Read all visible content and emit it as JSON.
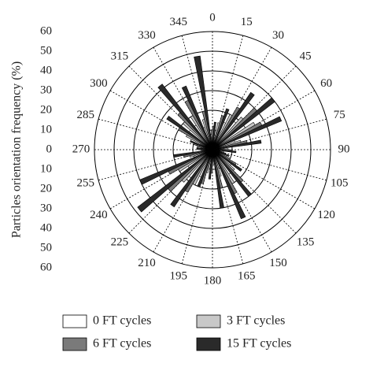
{
  "chart_data": {
    "type": "polar-bar",
    "y_label": "Particles orientation frequency (%)",
    "categories": [
      "0",
      "15",
      "30",
      "45",
      "60",
      "75",
      "90",
      "105",
      "120",
      "135",
      "150",
      "165",
      "180",
      "195",
      "210",
      "225",
      "240",
      "255",
      "270",
      "285",
      "300",
      "315",
      "330",
      "345"
    ],
    "rlim": [
      0,
      60
    ],
    "rticks": [
      0,
      10,
      20,
      30,
      40,
      50,
      60
    ],
    "grid": true,
    "series": [
      {
        "name": "0 FT cycles",
        "color": "#ffffff",
        "values": [
          8,
          10,
          15,
          18,
          20,
          12,
          6,
          4,
          8,
          12,
          15,
          10,
          6,
          10,
          15,
          18,
          15,
          10,
          5,
          6,
          12,
          15,
          15,
          12
        ]
      },
      {
        "name": "3 FT cycles",
        "color": "#c8c8c8",
        "values": [
          10,
          14,
          20,
          22,
          25,
          15,
          8,
          6,
          10,
          15,
          20,
          14,
          8,
          12,
          20,
          22,
          20,
          12,
          6,
          8,
          15,
          20,
          20,
          16
        ]
      },
      {
        "name": "6 FT cycles",
        "color": "#7a7a7a",
        "values": [
          12,
          18,
          25,
          30,
          28,
          18,
          10,
          7,
          14,
          22,
          25,
          20,
          12,
          18,
          25,
          30,
          25,
          15,
          8,
          10,
          20,
          25,
          28,
          20
        ]
      },
      {
        "name": "15 FT cycles",
        "color": "#2a2a2a",
        "values": [
          14,
          22,
          35,
          40,
          38,
          25,
          12,
          9,
          18,
          30,
          38,
          30,
          15,
          20,
          35,
          48,
          40,
          20,
          8,
          12,
          28,
          42,
          35,
          48
        ]
      }
    ]
  }
}
